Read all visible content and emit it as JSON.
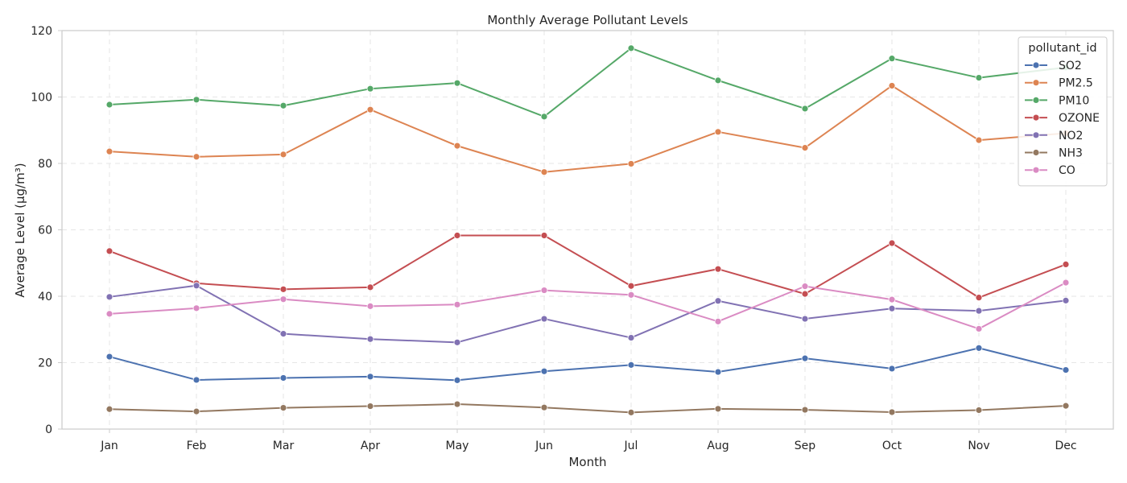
{
  "chart_data": {
    "type": "line",
    "title": "Monthly Average Pollutant Levels",
    "xlabel": "Month",
    "ylabel": "Average Level (µg/m³)",
    "categories": [
      "Jan",
      "Feb",
      "Mar",
      "Apr",
      "May",
      "Jun",
      "Jul",
      "Aug",
      "Sep",
      "Oct",
      "Nov",
      "Dec"
    ],
    "ylim": [
      0,
      120
    ],
    "yticks": [
      0,
      20,
      40,
      60,
      80,
      100,
      120
    ],
    "grid": true,
    "legend": {
      "title": "pollutant_id",
      "placement": "top-right"
    },
    "series": [
      {
        "name": "SO2",
        "color": "#4c72b0",
        "values": [
          21.8,
          14.8,
          15.4,
          15.8,
          14.7,
          17.4,
          19.3,
          17.2,
          21.3,
          18.2,
          24.4,
          17.8
        ]
      },
      {
        "name": "PM2.5",
        "color": "#dd8452",
        "values": [
          83.6,
          82.0,
          82.7,
          96.2,
          85.3,
          77.4,
          79.9,
          89.5,
          84.7,
          103.4,
          87.0,
          89.1
        ]
      },
      {
        "name": "PM10",
        "color": "#55a868",
        "values": [
          97.7,
          99.2,
          97.4,
          102.5,
          104.2,
          94.1,
          114.7,
          105.0,
          96.5,
          111.6,
          105.8,
          108.9
        ]
      },
      {
        "name": "OZONE",
        "color": "#c44e52",
        "values": [
          53.6,
          43.9,
          42.1,
          42.7,
          58.3,
          58.3,
          43.1,
          48.2,
          40.7,
          56.0,
          39.6,
          49.6
        ]
      },
      {
        "name": "NO2",
        "color": "#8172b3",
        "values": [
          39.8,
          43.2,
          28.7,
          27.1,
          26.1,
          33.2,
          27.5,
          38.6,
          33.2,
          36.3,
          35.6,
          38.7
        ]
      },
      {
        "name": "NH3",
        "color": "#937860",
        "values": [
          6.0,
          5.3,
          6.4,
          6.9,
          7.5,
          6.5,
          5.0,
          6.1,
          5.8,
          5.1,
          5.7,
          7.0
        ]
      },
      {
        "name": "CO",
        "color": "#da8bc3",
        "values": [
          34.7,
          36.4,
          39.1,
          37.0,
          37.5,
          41.8,
          40.4,
          32.4,
          43.0,
          39.0,
          30.2,
          44.1
        ]
      }
    ]
  }
}
